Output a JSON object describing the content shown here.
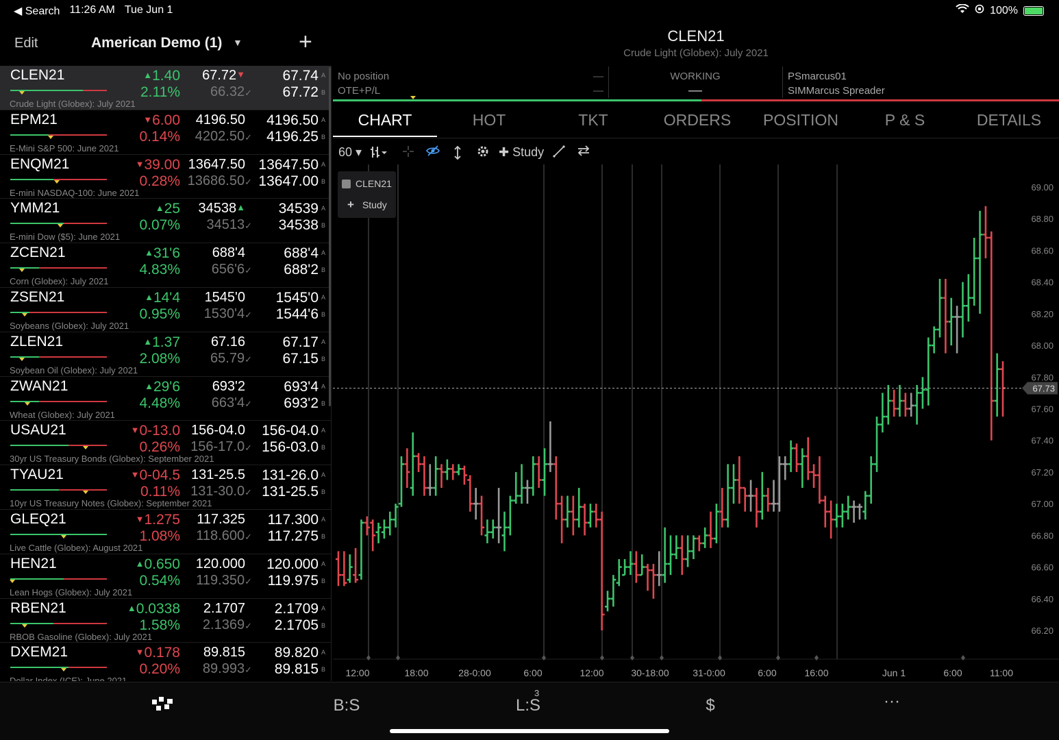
{
  "status": {
    "back": "◀ Search",
    "time": "11:26 AM",
    "date": "Tue Jun 1",
    "battery": "100%"
  },
  "watchlist_header": {
    "edit": "Edit",
    "name": "American Demo (1)",
    "add": "+"
  },
  "quotes": [
    {
      "sym": "CLEN21",
      "chg": "1.40",
      "dir": "up",
      "pct": "2.11%",
      "last": "67.72",
      "last_mark": "▼",
      "prev": "66.32",
      "ask": "67.74",
      "bid": "67.72",
      "desc": "Crude Light (Globex): July 2021",
      "bar": 0.75,
      "marker": 0.12
    },
    {
      "sym": "EPM21",
      "chg": "6.00",
      "dir": "dn",
      "pct": "0.14%",
      "last": "4196.50",
      "last_mark": "",
      "prev": "4202.50",
      "ask": "4196.50",
      "bid": "4196.25",
      "desc": "E-Mini S&P 500: June 2021",
      "bar": 0.4,
      "marker": 0.42
    },
    {
      "sym": "ENQM21",
      "chg": "39.00",
      "dir": "dn",
      "pct": "0.28%",
      "last": "13647.50",
      "last_mark": "",
      "prev": "13686.50",
      "ask": "13647.50",
      "bid": "13647.00",
      "desc": "E-mini NASDAQ-100: June 2021",
      "bar": 0.45,
      "marker": 0.48
    },
    {
      "sym": "YMM21",
      "chg": "25",
      "dir": "up",
      "pct": "0.07%",
      "last": "34538",
      "last_mark": "▲",
      "prev": "34513",
      "ask": "34539",
      "bid": "34538",
      "desc": "E-mini Dow ($5): June 2021",
      "bar": 0.55,
      "marker": 0.52
    },
    {
      "sym": "ZCEN21",
      "chg": "31'6",
      "dir": "up",
      "pct": "4.83%",
      "last": "688'4",
      "last_mark": "",
      "prev": "656'6",
      "ask": "688'4",
      "bid": "688'2",
      "desc": "Corn (Globex): July 2021",
      "bar": 0.3,
      "marker": 0.12
    },
    {
      "sym": "ZSEN21",
      "chg": "14'4",
      "dir": "up",
      "pct": "0.95%",
      "last": "1545'0",
      "last_mark": "",
      "prev": "1530'4",
      "ask": "1545'0",
      "bid": "1544'6",
      "desc": "Soybeans (Globex): July 2021",
      "bar": 0.2,
      "marker": 0.15
    },
    {
      "sym": "ZLEN21",
      "chg": "1.37",
      "dir": "up",
      "pct": "2.08%",
      "last": "67.16",
      "last_mark": "",
      "prev": "65.79",
      "ask": "67.17",
      "bid": "67.15",
      "desc": "Soybean Oil (Globex): July 2021",
      "bar": 0.3,
      "marker": 0.12
    },
    {
      "sym": "ZWAN21",
      "chg": "29'6",
      "dir": "up",
      "pct": "4.48%",
      "last": "693'2",
      "last_mark": "",
      "prev": "663'4",
      "ask": "693'4",
      "bid": "693'2",
      "desc": "Wheat (Globex): July 2021",
      "bar": 0.3,
      "marker": 0.18
    },
    {
      "sym": "USAU21",
      "chg": "0-13.0",
      "dir": "dn",
      "pct": "0.26%",
      "last": "156-04.0",
      "last_mark": "",
      "prev": "156-17.0",
      "ask": "156-04.0",
      "bid": "156-03.0",
      "desc": "30yr US Treasury Bonds (Globex): September 2021",
      "bar": 0.6,
      "marker": 0.78
    },
    {
      "sym": "TYAU21",
      "chg": "0-04.5",
      "dir": "dn",
      "pct": "0.11%",
      "last": "131-25.5",
      "last_mark": "",
      "prev": "131-30.0",
      "ask": "131-26.0",
      "bid": "131-25.5",
      "desc": "10yr US Treasury Notes (Globex): September 2021",
      "bar": 0.5,
      "marker": 0.78
    },
    {
      "sym": "GLEQ21",
      "chg": "1.275",
      "dir": "dn",
      "pct": "1.08%",
      "last": "117.325",
      "last_mark": "",
      "prev": "118.600",
      "ask": "117.300",
      "bid": "117.275",
      "desc": "Live Cattle (Globex): August 2021",
      "bar": 1.0,
      "marker": 0.55
    },
    {
      "sym": "HEN21",
      "chg": "0.650",
      "dir": "up",
      "pct": "0.54%",
      "last": "120.000",
      "last_mark": "",
      "prev": "119.350",
      "ask": "120.000",
      "bid": "119.975",
      "desc": "Lean Hogs (Globex): July 2021",
      "bar": 0.55,
      "marker": 0.02
    },
    {
      "sym": "RBEN21",
      "chg": "0.0338",
      "dir": "up",
      "pct": "1.58%",
      "last": "2.1707",
      "last_mark": "",
      "prev": "2.1369",
      "ask": "2.1709",
      "bid": "2.1705",
      "desc": "RBOB Gasoline (Globex): July 2021",
      "bar": 0.45,
      "marker": 0.15
    },
    {
      "sym": "DXEM21",
      "chg": "0.178",
      "dir": "dn",
      "pct": "0.20%",
      "last": "89.815",
      "last_mark": "",
      "prev": "89.993",
      "ask": "89.820",
      "bid": "89.815",
      "desc": "Dollar Index (ICE): June 2021",
      "bar": 0.6,
      "marker": 0.55
    }
  ],
  "labels": {
    "ask_tag": "A",
    "bid_tag": "B",
    "check": "✓"
  },
  "chart_header": {
    "symbol": "CLEN21",
    "description": "Crude Light (Globex): July 2021"
  },
  "position": {
    "line1": "No position",
    "line2": "OTE+P/L",
    "dash": "—",
    "working": "WORKING",
    "working_val": "—",
    "account": "PSmarcus01",
    "account_name": "SIMMarcus Spreader"
  },
  "tabs": [
    "CHART",
    "HOT",
    "TKT",
    "ORDERS",
    "POSITION",
    "P & S",
    "DETAILS"
  ],
  "toolbar": {
    "interval": "60 ▾",
    "study": "✚ Study"
  },
  "legend": {
    "symbol": "CLEN21",
    "study": "Study"
  },
  "colors": {
    "up": "#3cc56b",
    "down": "#e0474f",
    "doji": "#9a9a9a"
  },
  "bottom_tabs": [
    "B:S",
    "L:S",
    "$",
    "···"
  ],
  "bottom_badge": "3",
  "chart_data": {
    "type": "ohlc",
    "symbol": "CLEN21",
    "interval": "60",
    "ylim": [
      66.0,
      69.1
    ],
    "y_ticks": [
      "69.00",
      "68.80",
      "68.60",
      "68.40",
      "68.20",
      "68.00",
      "67.80",
      "67.60",
      "67.40",
      "67.20",
      "67.00",
      "66.80",
      "66.60",
      "66.40",
      "66.20"
    ],
    "x_ticks": [
      "12:00",
      "18:00",
      "28-0:00",
      "6:00",
      "12:00",
      "30-18:00",
      "31-0:00",
      "6:00",
      "16:00",
      "Jun 1",
      "6:00",
      "11:00"
    ],
    "last_price": "67.73",
    "bars": [
      [
        66.65,
        66.7,
        66.48,
        66.55
      ],
      [
        66.55,
        66.7,
        66.48,
        66.5
      ],
      [
        66.52,
        66.68,
        66.5,
        66.6
      ],
      [
        66.55,
        66.72,
        66.5,
        66.52
      ],
      [
        66.55,
        66.9,
        66.52,
        66.88
      ],
      [
        66.88,
        66.92,
        66.8,
        66.85
      ],
      [
        66.88,
        66.9,
        66.7,
        66.8
      ],
      [
        66.82,
        66.88,
        66.75,
        66.85
      ],
      [
        66.82,
        66.9,
        66.78,
        66.85
      ],
      [
        66.85,
        66.95,
        66.8,
        66.9
      ],
      [
        66.9,
        67.0,
        66.85,
        66.98
      ],
      [
        67.0,
        67.3,
        66.98,
        67.25
      ],
      [
        67.25,
        67.35,
        67.1,
        67.2
      ],
      [
        67.1,
        67.45,
        67.05,
        67.3
      ],
      [
        67.3,
        67.32,
        67.2,
        67.25
      ],
      [
        67.25,
        67.3,
        67.05,
        67.1
      ],
      [
        67.1,
        67.25,
        67.05,
        67.1
      ],
      [
        67.1,
        67.3,
        67.05,
        67.22
      ],
      [
        67.22,
        67.25,
        67.1,
        67.2
      ],
      [
        67.2,
        67.28,
        67.15,
        67.22
      ],
      [
        67.22,
        67.25,
        67.15,
        67.2
      ],
      [
        67.2,
        67.25,
        67.18,
        67.22
      ],
      [
        67.22,
        67.24,
        67.12,
        67.18
      ],
      [
        67.15,
        67.18,
        66.95,
        67.0
      ],
      [
        67.0,
        67.1,
        66.9,
        67.0
      ],
      [
        67.0,
        67.05,
        66.8,
        66.85
      ],
      [
        66.8,
        66.9,
        66.75,
        66.82
      ],
      [
        66.82,
        66.9,
        66.78,
        66.85
      ],
      [
        66.85,
        67.1,
        66.75,
        66.85
      ],
      [
        66.8,
        66.95,
        66.7,
        66.85
      ],
      [
        66.85,
        67.05,
        66.8,
        67.02
      ],
      [
        67.02,
        67.2,
        67.0,
        67.05
      ],
      [
        67.05,
        67.25,
        67.0,
        67.1
      ],
      [
        67.1,
        67.15,
        67.0,
        67.1
      ],
      [
        67.1,
        67.3,
        67.05,
        67.25
      ],
      [
        67.25,
        67.3,
        67.1,
        67.15
      ],
      [
        67.15,
        67.35,
        67.05,
        67.25
      ],
      [
        67.25,
        67.52,
        67.2,
        67.25
      ],
      [
        67.25,
        67.3,
        66.9,
        67.0
      ],
      [
        67.0,
        67.05,
        66.75,
        66.9
      ],
      [
        66.9,
        67.05,
        66.85,
        66.95
      ],
      [
        66.95,
        67.05,
        66.8,
        66.9
      ],
      [
        66.9,
        67.1,
        66.85,
        66.98
      ],
      [
        66.98,
        67.0,
        66.8,
        66.88
      ],
      [
        66.88,
        67.0,
        66.85,
        66.95
      ],
      [
        66.95,
        67.0,
        66.85,
        66.9
      ],
      [
        66.9,
        66.95,
        66.2,
        66.3
      ],
      [
        66.35,
        66.45,
        66.32,
        66.4
      ],
      [
        66.4,
        66.55,
        66.35,
        66.52
      ],
      [
        66.5,
        66.65,
        66.48,
        66.6
      ],
      [
        66.55,
        66.65,
        66.55,
        66.6
      ],
      [
        66.6,
        66.7,
        66.55,
        66.62
      ],
      [
        66.62,
        66.7,
        66.5,
        66.55
      ],
      [
        66.55,
        66.68,
        66.55,
        66.6
      ],
      [
        66.6,
        66.62,
        66.45,
        66.58
      ],
      [
        66.58,
        66.62,
        66.4,
        66.55
      ],
      [
        66.55,
        66.7,
        66.48,
        66.55
      ],
      [
        66.55,
        66.85,
        66.5,
        66.62
      ],
      [
        66.62,
        66.8,
        66.55,
        66.68
      ],
      [
        66.68,
        66.8,
        66.65,
        66.72
      ],
      [
        66.72,
        66.8,
        66.55,
        66.65
      ],
      [
        66.65,
        66.8,
        66.6,
        66.7
      ],
      [
        66.7,
        66.8,
        66.65,
        66.78
      ],
      [
        66.78,
        66.8,
        66.7,
        66.75
      ],
      [
        66.75,
        66.85,
        66.72,
        66.8
      ],
      [
        66.8,
        66.95,
        66.72,
        66.78
      ],
      [
        66.78,
        67.0,
        66.75,
        66.95
      ],
      [
        66.95,
        67.1,
        66.85,
        66.9
      ],
      [
        66.9,
        67.25,
        66.85,
        67.1
      ],
      [
        67.1,
        67.25,
        67.0,
        67.15
      ],
      [
        67.15,
        67.3,
        67.0,
        67.1
      ],
      [
        67.1,
        67.1,
        66.95,
        67.05
      ],
      [
        67.05,
        67.15,
        66.95,
        67.05
      ],
      [
        67.05,
        67.1,
        66.85,
        66.95
      ],
      [
        66.95,
        67.2,
        66.9,
        67.05
      ],
      [
        67.05,
        67.1,
        66.95,
        67.0
      ],
      [
        67.0,
        67.15,
        66.95,
        67.0
      ],
      [
        67.0,
        67.3,
        66.95,
        67.25
      ],
      [
        67.25,
        67.3,
        67.15,
        67.25
      ],
      [
        67.25,
        67.4,
        67.2,
        67.35
      ],
      [
        67.35,
        67.38,
        67.2,
        67.25
      ],
      [
        67.25,
        67.35,
        67.1,
        67.3
      ],
      [
        67.3,
        67.42,
        67.15,
        67.2
      ],
      [
        67.2,
        67.25,
        67.1,
        67.18
      ],
      [
        67.18,
        67.3,
        67.0,
        67.02
      ],
      [
        67.02,
        67.05,
        66.85,
        66.95
      ],
      [
        66.95,
        67.02,
        66.78,
        66.9
      ],
      [
        66.9,
        67.0,
        66.85,
        66.92
      ],
      [
        66.92,
        67.0,
        66.85,
        66.95
      ],
      [
        66.95,
        67.05,
        66.9,
        66.98
      ],
      [
        66.98,
        67.02,
        66.88,
        66.98
      ],
      [
        66.98,
        67.0,
        66.9,
        66.98
      ],
      [
        66.95,
        67.08,
        66.9,
        67.05
      ],
      [
        67.05,
        67.3,
        67.0,
        67.25
      ],
      [
        67.25,
        67.55,
        67.2,
        67.5
      ],
      [
        67.5,
        67.7,
        67.45,
        67.55
      ],
      [
        67.55,
        67.75,
        67.5,
        67.65
      ],
      [
        67.65,
        67.72,
        67.55,
        67.6
      ],
      [
        67.6,
        67.75,
        67.55,
        67.65
      ],
      [
        67.65,
        67.7,
        67.55,
        67.6
      ],
      [
        67.6,
        67.7,
        67.55,
        67.62
      ],
      [
        67.62,
        67.75,
        67.5,
        67.7
      ],
      [
        67.7,
        67.8,
        67.6,
        67.72
      ],
      [
        67.72,
        68.05,
        67.62,
        68.0
      ],
      [
        68.0,
        68.12,
        67.95,
        68.1
      ],
      [
        68.1,
        68.42,
        68.05,
        68.3
      ],
      [
        68.3,
        68.42,
        67.95,
        68.15
      ],
      [
        68.15,
        68.3,
        68.0,
        68.18
      ],
      [
        68.18,
        68.25,
        67.95,
        68.18
      ],
      [
        68.18,
        68.4,
        68.05,
        68.25
      ],
      [
        68.25,
        68.45,
        68.15,
        68.3
      ],
      [
        68.3,
        68.68,
        68.25,
        68.55
      ],
      [
        68.55,
        68.85,
        68.2,
        68.7
      ],
      [
        68.7,
        68.88,
        68.55,
        68.68
      ],
      [
        68.68,
        68.72,
        67.4,
        67.65
      ],
      [
        67.65,
        67.95,
        67.55,
        67.85
      ],
      [
        67.85,
        67.9,
        67.55,
        67.73
      ]
    ]
  }
}
